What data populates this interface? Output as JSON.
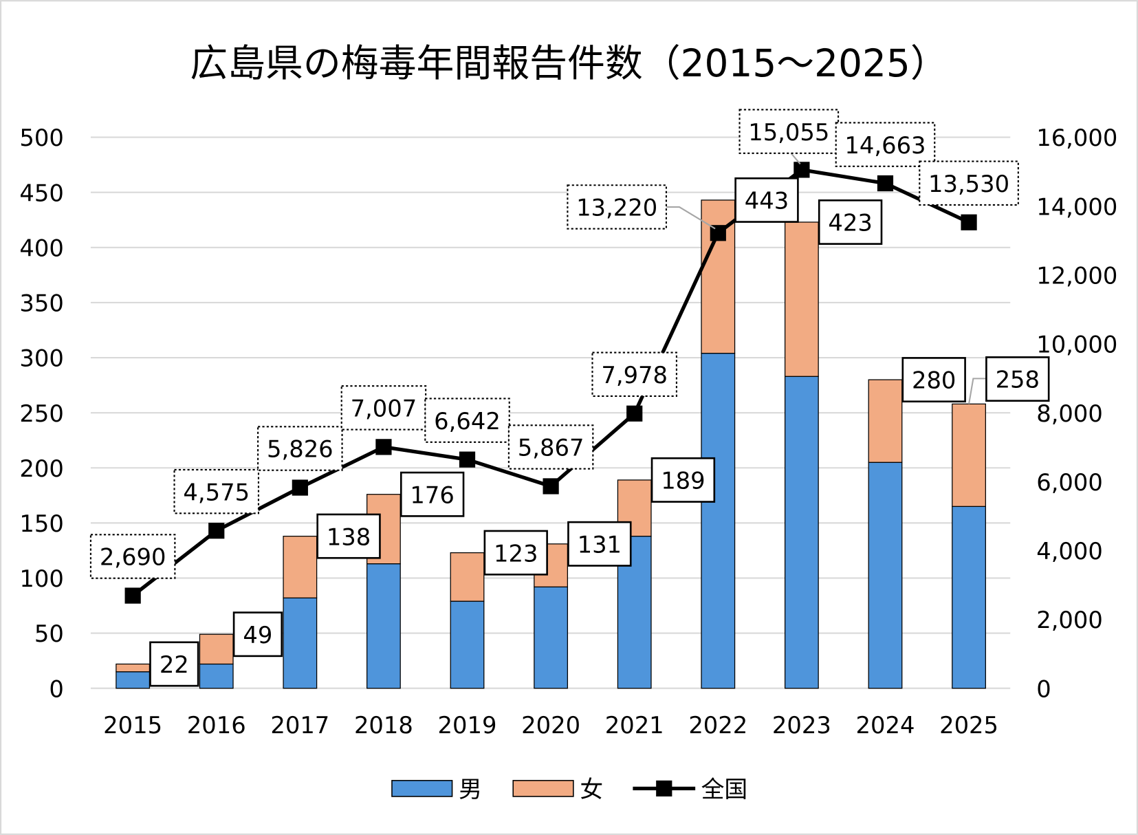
{
  "chart_data": {
    "type": "bar",
    "stacked": true,
    "title": "広島県の梅毒年間報告件数（2015～2025）",
    "categories": [
      "2015",
      "2016",
      "2017",
      "2018",
      "2019",
      "2020",
      "2021",
      "2022",
      "2023",
      "2024",
      "2025"
    ],
    "series": [
      {
        "name": "男",
        "type": "bar",
        "axis": "left",
        "color": "#4F95DB",
        "values": [
          15,
          22,
          82,
          113,
          79,
          92,
          138,
          304,
          283,
          205,
          165
        ]
      },
      {
        "name": "女",
        "type": "bar",
        "axis": "left",
        "color": "#F2AB83",
        "values": [
          7,
          27,
          56,
          63,
          44,
          39,
          51,
          139,
          140,
          75,
          93
        ]
      },
      {
        "name": "全国",
        "type": "line",
        "axis": "right",
        "color": "#000000",
        "marker": "square",
        "values": [
          2690,
          4575,
          5826,
          7007,
          6642,
          5867,
          7978,
          13220,
          15055,
          14663,
          13530
        ]
      }
    ],
    "total_labels": [
      "22",
      "49",
      "138",
      "176",
      "123",
      "131",
      "189",
      "443",
      "423",
      "280",
      "258"
    ],
    "line_labels": [
      "2,690",
      "4,575",
      "5,826",
      "7,007",
      "6,642",
      "5,867",
      "7,978",
      "13,220",
      "15,055",
      "14,663",
      "13,530"
    ],
    "y_left": {
      "range": [
        0,
        500
      ],
      "ticks": [
        "0",
        "50",
        "100",
        "150",
        "200",
        "250",
        "300",
        "350",
        "400",
        "450",
        "500"
      ]
    },
    "y_right": {
      "range": [
        0,
        16000
      ],
      "ticks": [
        "0",
        "2,000",
        "4,000",
        "6,000",
        "8,000",
        "10,000",
        "12,000",
        "14,000",
        "16,000"
      ]
    },
    "grid": true,
    "legend": "bottom"
  }
}
